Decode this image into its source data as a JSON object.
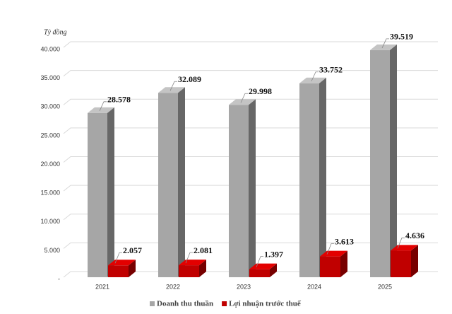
{
  "chart_data": {
    "type": "bar3d",
    "y_label": "Tỷ đồng",
    "categories": [
      "2021",
      "2022",
      "2023",
      "2024",
      "2025"
    ],
    "series": [
      {
        "name": "Doanh thu thuần",
        "color": "#a6a6a6",
        "values": [
          28578,
          32089,
          29998,
          33752,
          39519
        ],
        "value_labels": [
          "28.578",
          "32.089",
          "29.998",
          "33.752",
          "39.519"
        ]
      },
      {
        "name": "Lợi nhuận trước thuế",
        "color": "#c00000",
        "values": [
          2057,
          2081,
          1397,
          3613,
          4636
        ],
        "value_labels": [
          "2.057",
          "2.081",
          "1.397",
          "3.613",
          "4.636"
        ]
      }
    ],
    "ylim": [
      0,
      40000
    ],
    "yticks": [
      {
        "value": 0,
        "label": "-"
      },
      {
        "value": 5000,
        "label": "5.000"
      },
      {
        "value": 10000,
        "label": "10.000"
      },
      {
        "value": 15000,
        "label": "15.000"
      },
      {
        "value": 20000,
        "label": "20.000"
      },
      {
        "value": 25000,
        "label": "25.000"
      },
      {
        "value": 30000,
        "label": "30.000"
      },
      {
        "value": 35000,
        "label": "35.000"
      },
      {
        "value": 40000,
        "label": "40.000"
      }
    ],
    "grid": true,
    "legend": "bottom"
  }
}
